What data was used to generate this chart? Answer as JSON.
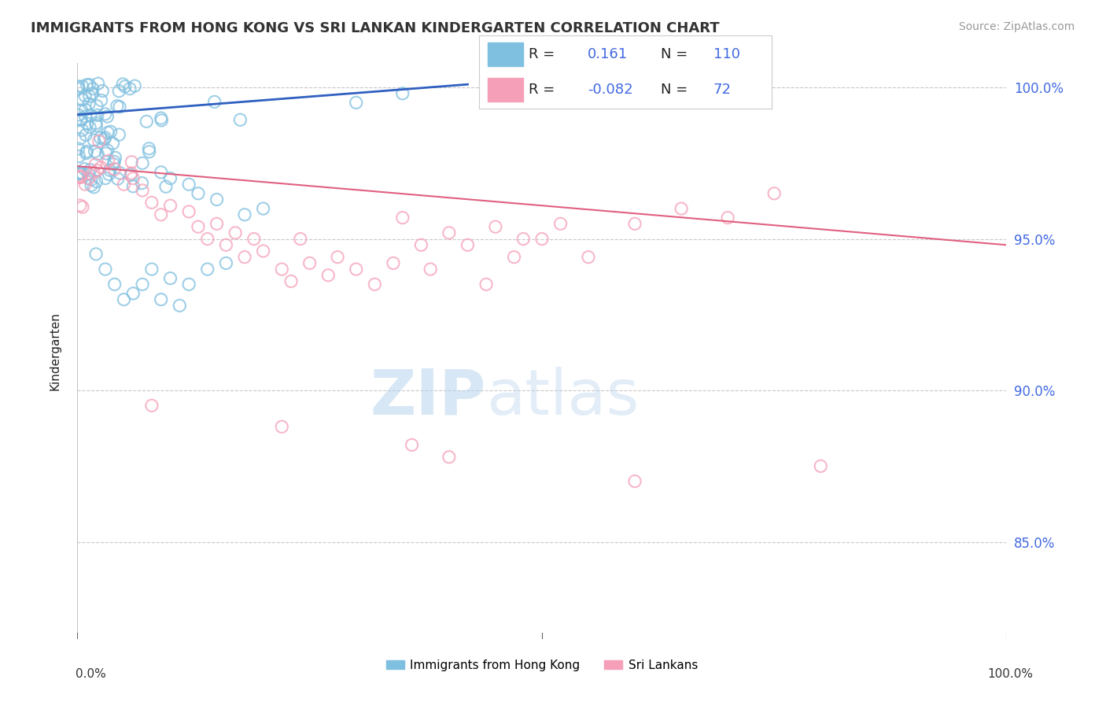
{
  "title": "IMMIGRANTS FROM HONG KONG VS SRI LANKAN KINDERGARTEN CORRELATION CHART",
  "source": "Source: ZipAtlas.com",
  "ylabel": "Kindergarten",
  "ytick_values": [
    0.85,
    0.9,
    0.95,
    1.0
  ],
  "ytick_labels": [
    "85.0%",
    "90.0%",
    "95.0%",
    "100.0%"
  ],
  "ylim": [
    0.818,
    1.008
  ],
  "xlim": [
    0.0,
    1.0
  ],
  "legend1_r": "0.161",
  "legend1_n": "110",
  "legend2_r": "-0.082",
  "legend2_n": "72",
  "blue_color": "#7FBFDF",
  "pink_color": "#F5A0B8",
  "trend_blue": "#3060C0",
  "trend_pink": "#E06080",
  "watermark_zip": "ZIP",
  "watermark_atlas": "atlas",
  "background_color": "#FFFFFF",
  "grid_color": "#C8C8C8",
  "legend_label1": "Immigrants from Hong Kong",
  "legend_label2": "Sri Lankans",
  "blue_trend_x0": 0.0,
  "blue_trend_x1": 0.42,
  "blue_trend_y0": 0.991,
  "blue_trend_y1": 1.001,
  "pink_trend_x0": 0.0,
  "pink_trend_x1": 1.0,
  "pink_trend_y0": 0.974,
  "pink_trend_y1": 0.948
}
